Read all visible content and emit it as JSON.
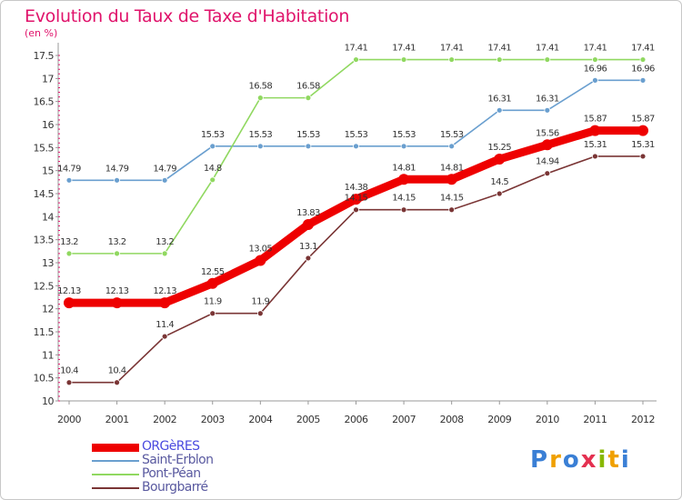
{
  "title": "Evolution du Taux de Taxe d'Habitation",
  "unit": "(en %)",
  "logo": {
    "letters": [
      "P",
      "r",
      "o",
      "x",
      "i",
      "t",
      "i"
    ],
    "colors": [
      "#3a7fd5",
      "#f0a000",
      "#3a7fd5",
      "#e43050",
      "#88b800",
      "#f0a000",
      "#3a7fd5"
    ]
  },
  "chart_data": {
    "type": "line",
    "x": [
      "2000",
      "2001",
      "2002",
      "2003",
      "2004",
      "2005",
      "2006",
      "2007",
      "2008",
      "2009",
      "2010",
      "2011",
      "2012"
    ],
    "ylim": [
      10,
      17.5
    ],
    "yticks": [
      "10",
      "10.5",
      "11",
      "11.5",
      "12",
      "12.5",
      "13",
      "13.5",
      "14",
      "14.5",
      "15",
      "15.5",
      "16",
      "16.5",
      "17",
      "17.5"
    ],
    "grid": false,
    "legend_position": "bottom-left",
    "series": [
      {
        "name": "ORGèRES",
        "color": "#ee0000",
        "width": 9,
        "values": [
          12.13,
          12.13,
          12.13,
          12.55,
          13.05,
          13.83,
          14.38,
          14.81,
          14.81,
          15.25,
          15.56,
          15.87,
          15.87
        ],
        "labels": [
          "12.13",
          "12.13",
          "12.13",
          "12.55",
          "13.05",
          "13.83",
          "14.38",
          "14.81",
          "14.81",
          "15.25",
          "15.56",
          "15.87",
          "15.87"
        ]
      },
      {
        "name": "Saint-Erblon",
        "color": "#6a9fcf",
        "width": 1.6,
        "values": [
          14.79,
          14.79,
          14.79,
          15.53,
          15.53,
          15.53,
          15.53,
          15.53,
          15.53,
          16.31,
          16.31,
          16.96,
          16.96
        ],
        "labels": [
          "14.79",
          "14.79",
          "14.79",
          "15.53",
          "15.53",
          "15.53",
          "15.53",
          "15.53",
          "15.53",
          "16.31",
          "16.31",
          "16.96",
          "16.96"
        ]
      },
      {
        "name": "Pont-Péan",
        "color": "#90d860",
        "width": 1.6,
        "values": [
          13.2,
          13.2,
          13.2,
          14.8,
          16.58,
          16.58,
          17.41,
          17.41,
          17.41,
          17.41,
          17.41,
          17.41,
          17.41
        ],
        "labels": [
          "13.2",
          "13.2",
          "13.2",
          "14.8",
          "16.58",
          "16.58",
          "17.41",
          "17.41",
          "17.41",
          "17.41",
          "17.41",
          "17.41",
          "17.41"
        ]
      },
      {
        "name": "Bourgbarré",
        "color": "#7a3535",
        "width": 1.6,
        "values": [
          10.4,
          10.4,
          11.4,
          11.9,
          11.9,
          13.1,
          14.15,
          14.15,
          14.15,
          14.5,
          14.94,
          15.31,
          15.31
        ],
        "labels": [
          "10.4",
          "10.4",
          "11.4",
          "11.9",
          "11.9",
          "13.1",
          "14.15",
          "14.15",
          "14.15",
          "14.5",
          "14.94",
          "15.31",
          "15.31"
        ]
      }
    ]
  }
}
